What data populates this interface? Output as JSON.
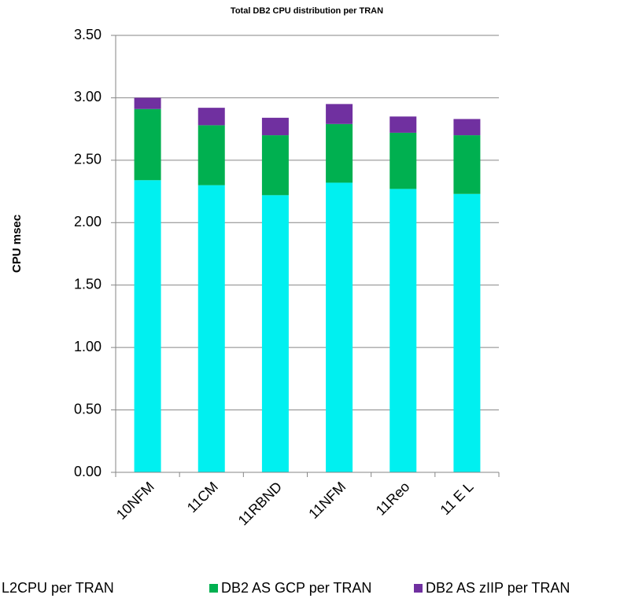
{
  "chart_data": {
    "type": "stacked_bar",
    "title": "Total DB2 CPU distribution per TRAN",
    "y_label": "CPU msec",
    "categories": [
      "10NFM",
      "11CM",
      "11RBND",
      "11NFM",
      "11Reo",
      "11 E L"
    ],
    "series": [
      {
        "name": "L2CPU per TRAN",
        "color": "#00f0f0",
        "values": [
          2.34,
          2.3,
          2.22,
          2.32,
          2.27,
          2.23
        ]
      },
      {
        "name": "DB2 AS GCP per TRAN",
        "color": "#00b050",
        "values": [
          0.57,
          0.48,
          0.48,
          0.47,
          0.45,
          0.47
        ]
      },
      {
        "name": "DB2 AS zIIP per TRAN",
        "color": "#7030a0",
        "values": [
          0.09,
          0.14,
          0.14,
          0.16,
          0.13,
          0.13
        ]
      }
    ],
    "ylim": [
      0,
      3.5
    ],
    "yticks": [
      {
        "value": 0,
        "label": "0.00"
      },
      {
        "value": 0.5,
        "label": "0.50"
      },
      {
        "value": 1,
        "label": "1.00"
      },
      {
        "value": 1.5,
        "label": "1.50"
      },
      {
        "value": 2,
        "label": "2.00"
      },
      {
        "value": 2.5,
        "label": "2.50"
      },
      {
        "value": 3,
        "label": "3.00"
      },
      {
        "value": 3.5,
        "label": "3.50"
      }
    ],
    "grid": true
  }
}
